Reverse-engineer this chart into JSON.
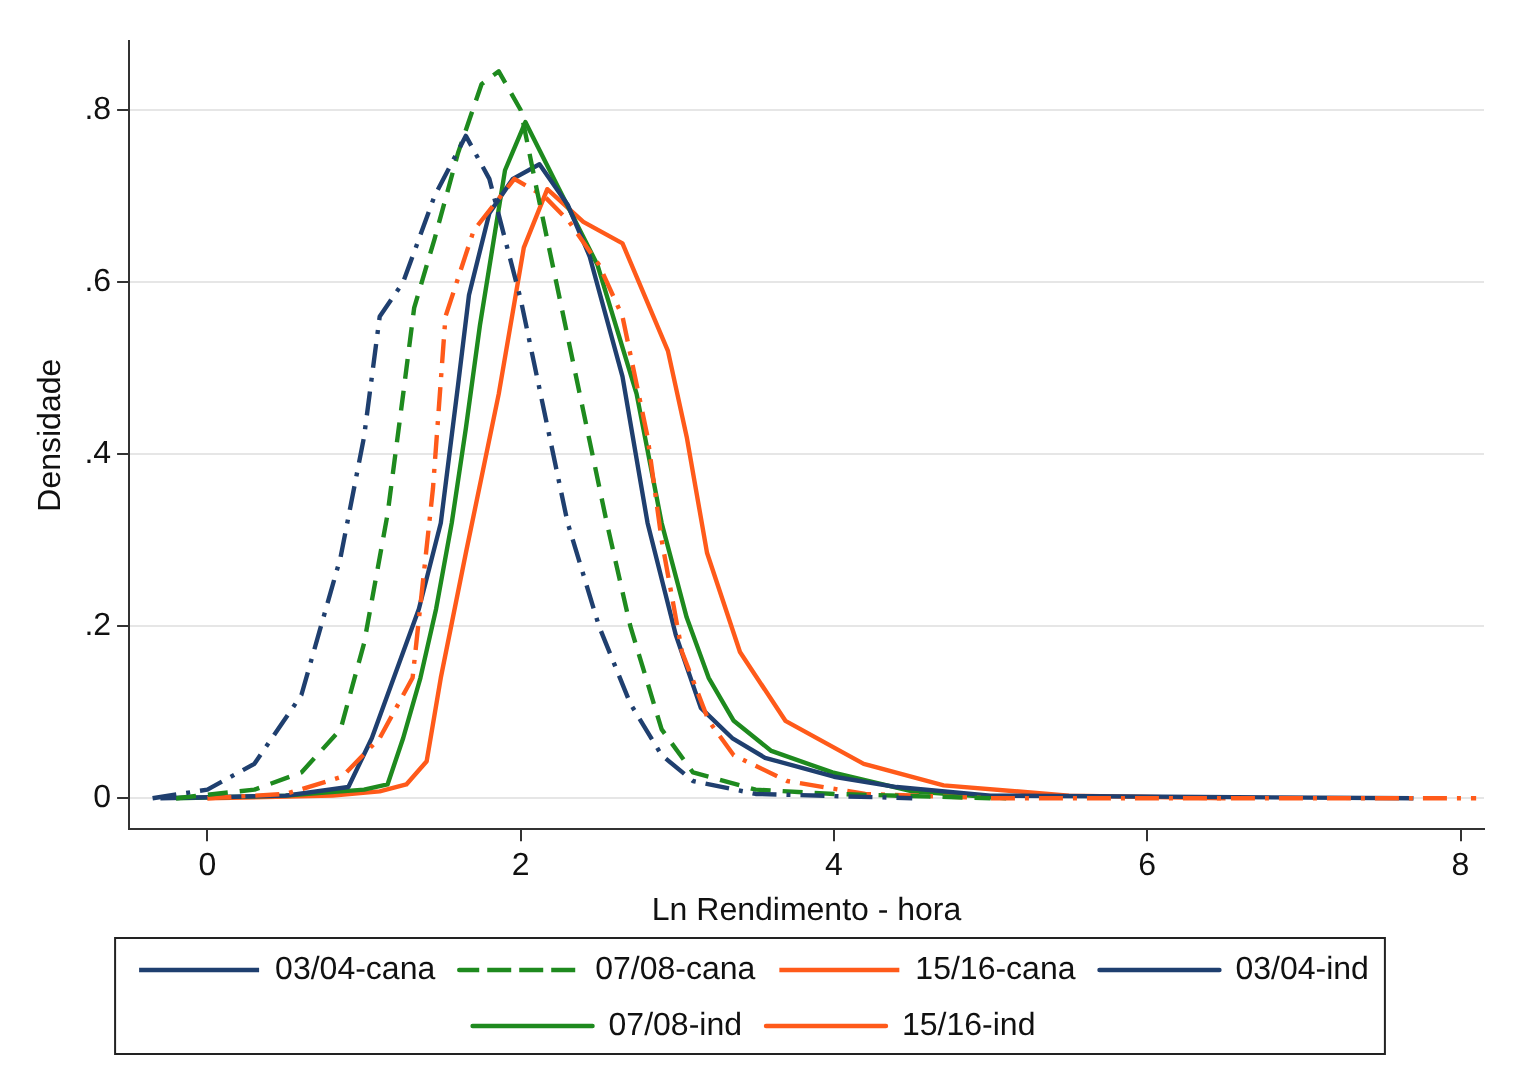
{
  "chart_data": {
    "type": "line",
    "xlabel": "Ln Rendimento - hora",
    "ylabel": "Densidade",
    "xlim": [
      -0.5,
      8.15
    ],
    "ylim": [
      -0.036,
      0.88
    ],
    "xticks": [
      0,
      2,
      4,
      6,
      8
    ],
    "yticks": [
      0,
      {
        "value": 0.2,
        "label": ".2"
      },
      {
        "value": 0.4,
        "label": ".4"
      },
      {
        "value": 0.6,
        "label": ".6"
      },
      {
        "value": 0.8,
        "label": ".8"
      }
    ],
    "grid": "y",
    "legend": "bottom",
    "marker": "none",
    "series": [
      {
        "name": "03/04-cana",
        "color": "#1f3f6f",
        "line_style": "dashdot",
        "x": [
          -0.35,
          0,
          0.3,
          0.6,
          0.85,
          1.0,
          1.1,
          1.25,
          1.45,
          1.65,
          1.8,
          2.0,
          2.15,
          2.3,
          2.5,
          2.7,
          2.9,
          3.1,
          3.5,
          4.5
        ],
        "values": [
          0,
          0.01,
          0.04,
          0.12,
          0.28,
          0.42,
          0.56,
          0.6,
          0.7,
          0.77,
          0.72,
          0.58,
          0.45,
          0.32,
          0.2,
          0.11,
          0.05,
          0.02,
          0.005,
          0
        ]
      },
      {
        "name": "07/08-cana",
        "color": "#1e8a1e",
        "line_style": "dashed",
        "x": [
          -0.2,
          0.3,
          0.6,
          0.85,
          1.0,
          1.15,
          1.25,
          1.32,
          1.45,
          1.6,
          1.75,
          1.86,
          2.0,
          2.1,
          2.25,
          2.4,
          2.55,
          2.7,
          2.9,
          3.1,
          3.5,
          4.0,
          5.0
        ],
        "values": [
          0,
          0.01,
          0.03,
          0.08,
          0.18,
          0.33,
          0.47,
          0.57,
          0.65,
          0.75,
          0.83,
          0.845,
          0.8,
          0.71,
          0.58,
          0.45,
          0.32,
          0.2,
          0.08,
          0.03,
          0.01,
          0.005,
          0
        ]
      },
      {
        "name": "15/16-cana",
        "color": "#ff5a1a",
        "line_style": "dashdot",
        "x": [
          0,
          0.5,
          0.86,
          1.1,
          1.31,
          1.44,
          1.52,
          1.7,
          1.96,
          2.15,
          2.31,
          2.5,
          2.65,
          2.81,
          2.9,
          3.03,
          3.2,
          3.36,
          3.7,
          4.2,
          5,
          8.1
        ],
        "values": [
          0,
          0.005,
          0.025,
          0.07,
          0.14,
          0.36,
          0.56,
          0.66,
          0.72,
          0.7,
          0.67,
          0.62,
          0.56,
          0.42,
          0.3,
          0.17,
          0.09,
          0.05,
          0.02,
          0.005,
          0,
          0
        ]
      },
      {
        "name": "03/04-ind",
        "color": "#1f3f6f",
        "line_style": "solid",
        "x": [
          -0.3,
          0.5,
          0.9,
          1.05,
          1.19,
          1.35,
          1.49,
          1.6,
          1.67,
          1.8,
          1.95,
          2.12,
          2.3,
          2.44,
          2.65,
          2.81,
          2.99,
          3.15,
          3.35,
          3.56,
          4.0,
          4.4,
          5,
          7.7
        ],
        "values": [
          0,
          0.003,
          0.013,
          0.07,
          0.14,
          0.22,
          0.32,
          0.48,
          0.585,
          0.68,
          0.72,
          0.737,
          0.69,
          0.63,
          0.49,
          0.32,
          0.19,
          0.105,
          0.07,
          0.047,
          0.025,
          0.013,
          0.003,
          0
        ]
      },
      {
        "name": "07/08-ind",
        "color": "#1e8a1e",
        "line_style": "solid",
        "x": [
          -0.2,
          0.5,
          1.0,
          1.15,
          1.25,
          1.36,
          1.46,
          1.56,
          1.65,
          1.74,
          1.9,
          2.03,
          2.24,
          2.49,
          2.74,
          2.9,
          3.06,
          3.2,
          3.36,
          3.6,
          3.99,
          4.5,
          5.1
        ],
        "values": [
          0,
          0.003,
          0.01,
          0.016,
          0.07,
          0.14,
          0.22,
          0.32,
          0.43,
          0.55,
          0.73,
          0.786,
          0.71,
          0.62,
          0.47,
          0.32,
          0.21,
          0.14,
          0.09,
          0.055,
          0.03,
          0.008,
          0
        ]
      },
      {
        "name": "15/16-ind",
        "color": "#ff5a1a",
        "line_style": "solid",
        "x": [
          0,
          0.8,
          1.1,
          1.27,
          1.4,
          1.49,
          1.65,
          1.86,
          2.02,
          2.17,
          2.4,
          2.65,
          2.94,
          3.06,
          3.19,
          3.4,
          3.69,
          4.19,
          4.7,
          5.5,
          6.5
        ],
        "values": [
          0,
          0.003,
          0.008,
          0.016,
          0.043,
          0.14,
          0.285,
          0.47,
          0.64,
          0.708,
          0.67,
          0.645,
          0.52,
          0.42,
          0.285,
          0.17,
          0.09,
          0.04,
          0.015,
          0.003,
          0
        ]
      }
    ]
  }
}
